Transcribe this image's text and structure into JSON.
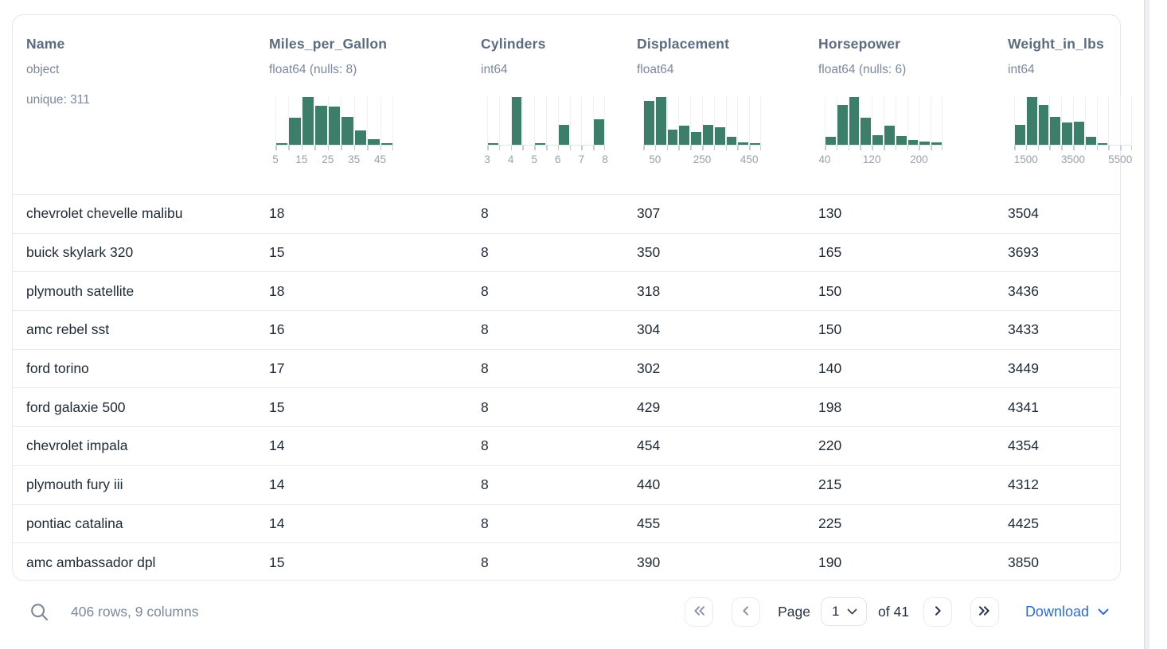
{
  "table": {
    "columns": [
      {
        "name": "Name",
        "type": "object",
        "extra": "unique: 311",
        "histogram": null
      },
      {
        "name": "Miles_per_Gallon",
        "type": "float64 (nulls: 8)",
        "histogram": {
          "type": "histogram",
          "bin_start": 5,
          "bin_step": 5,
          "bins": [
            0.03,
            0.56,
            1.0,
            0.81,
            0.8,
            0.59,
            0.3,
            0.11,
            0.03
          ],
          "tick_labels": [
            {
              "value": "5",
              "edge": 0
            },
            {
              "value": "15",
              "edge": 2
            },
            {
              "value": "25",
              "edge": 4
            },
            {
              "value": "35",
              "edge": 6
            },
            {
              "value": "45",
              "edge": 8
            }
          ]
        }
      },
      {
        "name": "Cylinders",
        "type": "int64",
        "histogram": {
          "type": "histogram",
          "bin_start": 3,
          "bin_step": 0.5,
          "bins": [
            0.03,
            0,
            1.0,
            0,
            0.03,
            0,
            0.41,
            0,
            0,
            0.53
          ],
          "tick_labels": [
            {
              "value": "3",
              "edge": 0
            },
            {
              "value": "4",
              "edge": 2
            },
            {
              "value": "5",
              "edge": 4
            },
            {
              "value": "6",
              "edge": 6
            },
            {
              "value": "7",
              "edge": 8
            },
            {
              "value": "8",
              "edge": 10
            }
          ]
        }
      },
      {
        "name": "Displacement",
        "type": "float64",
        "histogram": {
          "type": "histogram",
          "bin_start": 0,
          "bin_step": 50,
          "bins": [
            0.92,
            1.0,
            0.32,
            0.4,
            0.27,
            0.42,
            0.36,
            0.17,
            0.05,
            0.02
          ],
          "tick_labels": [
            {
              "value": "50",
              "edge": 1
            },
            {
              "value": "250",
              "edge": 5
            },
            {
              "value": "450",
              "edge": 9
            }
          ]
        }
      },
      {
        "name": "Horsepower",
        "type": "float64 (nulls: 6)",
        "histogram": {
          "type": "histogram",
          "bin_start": 40,
          "bin_step": 20,
          "bins": [
            0.16,
            0.83,
            1.0,
            0.56,
            0.2,
            0.4,
            0.18,
            0.1,
            0.06,
            0.05
          ],
          "tick_labels": [
            {
              "value": "40",
              "edge": 0
            },
            {
              "value": "120",
              "edge": 4
            },
            {
              "value": "200",
              "edge": 8
            }
          ]
        }
      },
      {
        "name": "Weight_in_lbs",
        "type": "int64",
        "histogram": {
          "type": "histogram",
          "bin_start": 1000,
          "bin_step": 500,
          "bins": [
            0.42,
            1.0,
            0.83,
            0.59,
            0.46,
            0.49,
            0.16,
            0.02,
            0,
            0
          ],
          "tick_labels": [
            {
              "value": "1500",
              "edge": 1
            },
            {
              "value": "3500",
              "edge": 5
            },
            {
              "value": "5500",
              "edge": 9
            }
          ]
        }
      }
    ],
    "rows": [
      [
        "chevrolet chevelle malibu",
        "18",
        "8",
        "307",
        "130",
        "3504"
      ],
      [
        "buick skylark 320",
        "15",
        "8",
        "350",
        "165",
        "3693"
      ],
      [
        "plymouth satellite",
        "18",
        "8",
        "318",
        "150",
        "3436"
      ],
      [
        "amc rebel sst",
        "16",
        "8",
        "304",
        "150",
        "3433"
      ],
      [
        "ford torino",
        "17",
        "8",
        "302",
        "140",
        "3449"
      ],
      [
        "ford galaxie 500",
        "15",
        "8",
        "429",
        "198",
        "4341"
      ],
      [
        "chevrolet impala",
        "14",
        "8",
        "454",
        "220",
        "4354"
      ],
      [
        "plymouth fury iii",
        "14",
        "8",
        "440",
        "215",
        "4312"
      ],
      [
        "pontiac catalina",
        "14",
        "8",
        "455",
        "225",
        "4425"
      ],
      [
        "amc ambassador dpl",
        "15",
        "8",
        "390",
        "190",
        "3850"
      ]
    ]
  },
  "footer": {
    "summary": "406 rows, 9 columns",
    "page_label": "Page",
    "current_page": "1",
    "of_label": "of 41",
    "download_label": "Download"
  },
  "icons": {
    "search": "magnifier",
    "first_page": "double-chevron-left",
    "prev_page": "chevron-left",
    "next_page": "chevron-right",
    "last_page": "double-chevron-right",
    "page_select": "chevron-down",
    "download": "chevron-down"
  },
  "colors": {
    "histogram_bar": "#3d7e6a",
    "header_text": "#5d6b80",
    "muted_text": "#7b879b",
    "cell_text": "#1e2936",
    "accent_blue": "#2c6bd9",
    "border": "#e3e8ee"
  }
}
